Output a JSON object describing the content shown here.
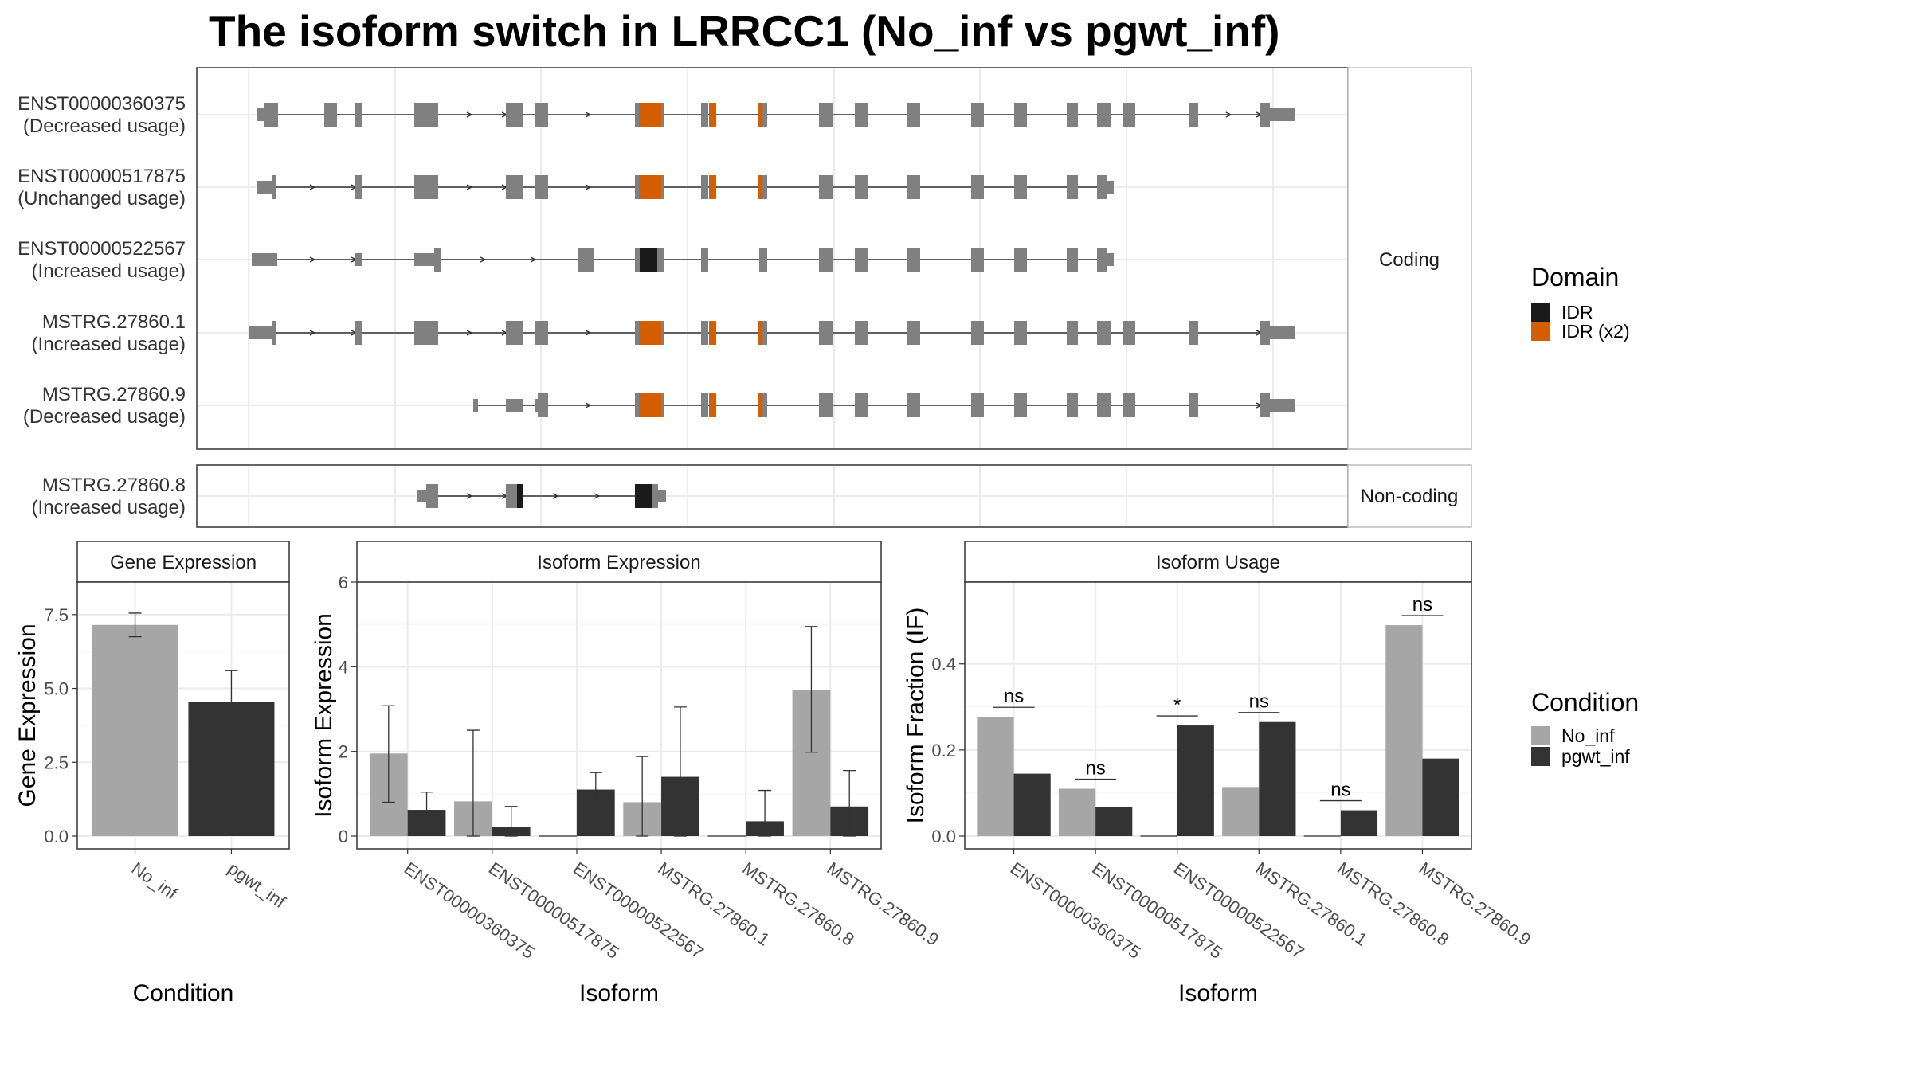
{
  "title": "The isoform switch in LRRCC1 (No_inf vs pgwt_inf)",
  "colors": {
    "exon": "#808080",
    "idr": "#1a1a1a",
    "idr_x2": "#d55e00",
    "no_inf": "#a6a6a6",
    "pgwt_inf": "#333333",
    "grid": "#ebebeb",
    "panel_border": "#333333"
  },
  "structure": {
    "coding_strip": "Coding",
    "noncoding_strip": "Non-coding",
    "isoforms": [
      {
        "id": "ENST00000360375",
        "usage": "(Decreased usage)",
        "group": "coding"
      },
      {
        "id": "ENST00000517875",
        "usage": "(Unchanged usage)",
        "group": "coding"
      },
      {
        "id": "ENST00000522567",
        "usage": "(Increased usage)",
        "group": "coding"
      },
      {
        "id": "MSTRG.27860.1",
        "usage": "(Increased usage)",
        "group": "coding"
      },
      {
        "id": "MSTRG.27860.9",
        "usage": "(Decreased usage)",
        "group": "coding"
      },
      {
        "id": "MSTRG.27860.8",
        "usage": "(Increased usage)",
        "group": "noncoding"
      }
    ]
  },
  "legends": {
    "domain": {
      "title": "Domain",
      "items": [
        "IDR",
        "IDR (x2)"
      ]
    },
    "condition": {
      "title": "Condition",
      "items": [
        "No_inf",
        "pgwt_inf"
      ]
    }
  },
  "chart_data": [
    {
      "type": "bar",
      "panel": "Gene Expression",
      "xlabel": "Condition",
      "ylabel": "Gene Expression",
      "categories": [
        "No_inf",
        "pgwt_inf"
      ],
      "values": [
        7.15,
        4.55
      ],
      "error_low": [
        6.75,
        3.55
      ],
      "error_high": [
        7.55,
        5.6
      ],
      "yticks": [
        "0.0",
        "2.5",
        "5.0",
        "7.5"
      ],
      "ylim": [
        0,
        8.6
      ]
    },
    {
      "type": "bar",
      "panel": "Isoform Expression",
      "xlabel": "Isoform",
      "ylabel": "Isoform Expression",
      "categories": [
        "ENST00000360375",
        "ENST00000517875",
        "ENST00000522567",
        "MSTRG.27860.1",
        "MSTRG.27860.8",
        "MSTRG.27860.9"
      ],
      "series": [
        {
          "name": "No_inf",
          "values": [
            1.95,
            0.82,
            0.0,
            0.8,
            0.0,
            3.45
          ],
          "error_low": [
            0.8,
            0.0,
            0.0,
            0.0,
            0.0,
            1.98
          ],
          "error_high": [
            3.08,
            2.5,
            0.0,
            1.88,
            0.0,
            4.95
          ]
        },
        {
          "name": "pgwt_inf",
          "values": [
            0.62,
            0.22,
            1.1,
            1.4,
            0.35,
            0.7
          ],
          "error_low": [
            0.2,
            0.0,
            0.7,
            0.0,
            0.0,
            0.0
          ],
          "error_high": [
            1.04,
            0.7,
            1.5,
            3.05,
            1.08,
            1.55
          ]
        }
      ],
      "yticks": [
        "0",
        "2",
        "4",
        "6"
      ],
      "ylim": [
        0,
        6
      ]
    },
    {
      "type": "bar",
      "panel": "Isoform Usage",
      "xlabel": "Isoform",
      "ylabel": "Isoform Fraction (IF)",
      "categories": [
        "ENST00000360375",
        "ENST00000517875",
        "ENST00000522567",
        "MSTRG.27860.1",
        "MSTRG.27860.8",
        "MSTRG.27860.9"
      ],
      "series": [
        {
          "name": "No_inf",
          "values": [
            0.277,
            0.11,
            0.0,
            0.114,
            0.0,
            0.49
          ]
        },
        {
          "name": "pgwt_inf",
          "values": [
            0.145,
            0.068,
            0.257,
            0.265,
            0.06,
            0.18
          ]
        }
      ],
      "significance": [
        "ns",
        "ns",
        "*",
        "ns",
        "ns",
        "ns"
      ],
      "yticks": [
        "0.0",
        "0.2",
        "0.4"
      ],
      "ylim": [
        0,
        0.59
      ]
    }
  ]
}
